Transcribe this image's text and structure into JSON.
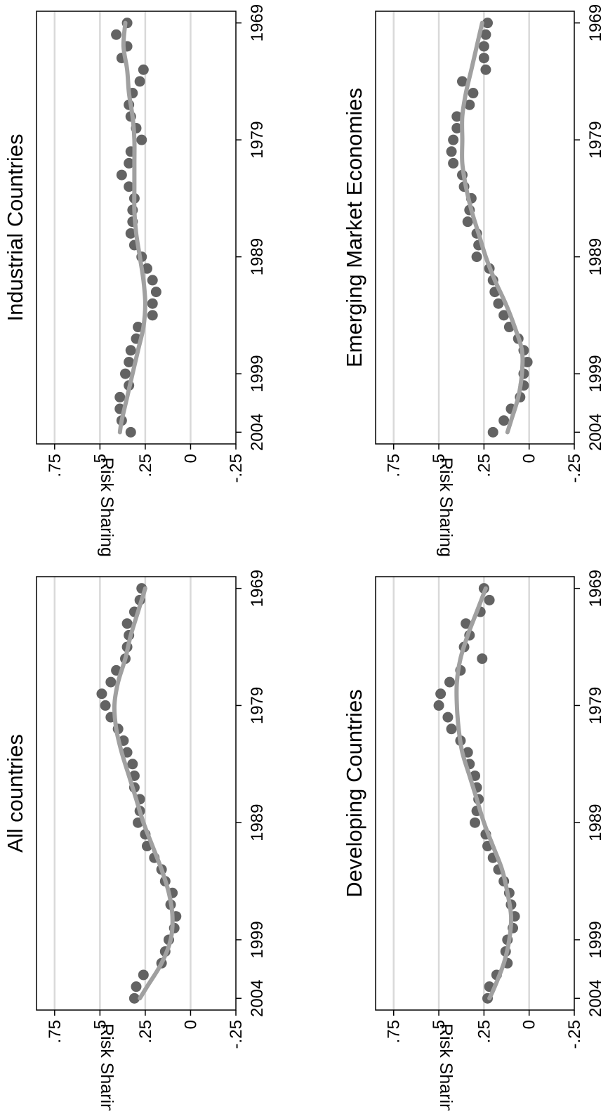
{
  "chart_data": [
    {
      "type": "scatter",
      "title": "All countries",
      "ylabel": "Risk Sharing",
      "xlabel": "",
      "xlim": [
        1968,
        2005
      ],
      "ylim": [
        -0.25,
        0.85
      ],
      "yticks": [
        {
          "v": 0.75,
          "label": ".75"
        },
        {
          "v": 0.5,
          "label": ".5"
        },
        {
          "v": 0.25,
          "label": ".25"
        },
        {
          "v": 0,
          "label": "0"
        },
        {
          "v": -0.25,
          "label": "-.25"
        }
      ],
      "xticks": [
        {
          "v": 1969,
          "label": "1969"
        },
        {
          "v": 1979,
          "label": "1979"
        },
        {
          "v": 1989,
          "label": "1989"
        },
        {
          "v": 1999,
          "label": "1999"
        },
        {
          "v": 2004,
          "label": "2004"
        }
      ],
      "gridlines": true,
      "series": [
        {
          "x": [
            1969,
            1970,
            1971,
            1972,
            1973,
            1974,
            1975,
            1976,
            1977,
            1978,
            1979,
            1980,
            1981,
            1982,
            1983,
            1984,
            1985,
            1986,
            1987,
            1988,
            1989,
            1990,
            1991,
            1992,
            1993,
            1994,
            1995,
            1996,
            1997,
            1998,
            1999,
            2000,
            2001,
            2002,
            2003,
            2004
          ],
          "y": [
            0.27,
            0.28,
            0.31,
            0.35,
            0.34,
            0.35,
            0.36,
            0.41,
            0.44,
            0.49,
            0.47,
            0.44,
            0.4,
            0.37,
            0.35,
            0.32,
            0.31,
            0.31,
            0.28,
            0.28,
            0.29,
            0.25,
            0.24,
            0.2,
            0.16,
            0.14,
            0.1,
            0.11,
            0.08,
            0.09,
            0.12,
            0.14,
            0.16,
            0.26,
            0.3,
            0.31
          ]
        },
        {
          "x": [
            1969,
            1971,
            1973,
            1975,
            1977,
            1979,
            1981,
            1983,
            1985,
            1987,
            1989,
            1991,
            1993,
            1995,
            1997,
            1999,
            2001,
            2003,
            2004
          ],
          "y": [
            0.25,
            0.29,
            0.33,
            0.36,
            0.4,
            0.42,
            0.41,
            0.38,
            0.34,
            0.3,
            0.26,
            0.21,
            0.16,
            0.12,
            0.1,
            0.11,
            0.16,
            0.24,
            0.28
          ]
        }
      ]
    },
    {
      "type": "scatter",
      "title": "Industrial Countries",
      "ylabel": "Risk Sharing",
      "xlabel": "",
      "xlim": [
        1968,
        2005
      ],
      "ylim": [
        -0.25,
        0.85
      ],
      "yticks": [
        {
          "v": 0.75,
          "label": ".75"
        },
        {
          "v": 0.5,
          "label": ".5"
        },
        {
          "v": 0.25,
          "label": ".25"
        },
        {
          "v": 0,
          "label": "0"
        },
        {
          "v": -0.25,
          "label": "-.25"
        }
      ],
      "xticks": [
        {
          "v": 1969,
          "label": "1969"
        },
        {
          "v": 1979,
          "label": "1979"
        },
        {
          "v": 1989,
          "label": "1989"
        },
        {
          "v": 1999,
          "label": "1999"
        },
        {
          "v": 2004,
          "label": "2004"
        }
      ],
      "gridlines": true,
      "series": [
        {
          "x": [
            1969,
            1970,
            1971,
            1972,
            1973,
            1974,
            1975,
            1976,
            1977,
            1978,
            1979,
            1980,
            1981,
            1982,
            1983,
            1984,
            1985,
            1986,
            1987,
            1988,
            1989,
            1990,
            1991,
            1992,
            1993,
            1994,
            1995,
            1996,
            1997,
            1998,
            1999,
            2000,
            2001,
            2002,
            2003,
            2004
          ],
          "y": [
            0.35,
            0.41,
            0.35,
            0.38,
            0.26,
            0.28,
            0.32,
            0.34,
            0.33,
            0.3,
            0.27,
            0.33,
            0.34,
            0.38,
            0.34,
            0.31,
            0.32,
            0.32,
            0.33,
            0.31,
            0.27,
            0.24,
            0.21,
            0.19,
            0.21,
            0.21,
            0.29,
            0.3,
            0.33,
            0.34,
            0.36,
            0.34,
            0.39,
            0.39,
            0.38,
            0.33
          ]
        },
        {
          "x": [
            1969,
            1971,
            1973,
            1975,
            1977,
            1979,
            1981,
            1983,
            1985,
            1987,
            1989,
            1991,
            1993,
            1995,
            1997,
            1999,
            2001,
            2003,
            2004
          ],
          "y": [
            0.36,
            0.37,
            0.35,
            0.34,
            0.32,
            0.31,
            0.31,
            0.31,
            0.31,
            0.3,
            0.28,
            0.26,
            0.25,
            0.26,
            0.29,
            0.32,
            0.35,
            0.38,
            0.39
          ]
        }
      ]
    },
    {
      "type": "scatter",
      "title": "Developing Countries",
      "ylabel": "Risk Sharing",
      "xlabel": "",
      "xlim": [
        1968,
        2005
      ],
      "ylim": [
        -0.25,
        0.85
      ],
      "yticks": [
        {
          "v": 0.75,
          "label": ".75"
        },
        {
          "v": 0.5,
          "label": ".5"
        },
        {
          "v": 0.25,
          "label": ".25"
        },
        {
          "v": 0,
          "label": "0"
        },
        {
          "v": -0.25,
          "label": "-.25"
        }
      ],
      "xticks": [
        {
          "v": 1969,
          "label": "1969"
        },
        {
          "v": 1979,
          "label": "1979"
        },
        {
          "v": 1989,
          "label": "1989"
        },
        {
          "v": 1999,
          "label": "1999"
        },
        {
          "v": 2004,
          "label": "2004"
        }
      ],
      "gridlines": true,
      "series": [
        {
          "x": [
            1969,
            1970,
            1971,
            1972,
            1973,
            1974,
            1975,
            1976,
            1977,
            1978,
            1979,
            1980,
            1981,
            1982,
            1983,
            1984,
            1985,
            1986,
            1987,
            1988,
            1989,
            1990,
            1991,
            1992,
            1993,
            1994,
            1995,
            1996,
            1997,
            1998,
            1999,
            2000,
            2001,
            2002,
            2003,
            2004
          ],
          "y": [
            0.25,
            0.22,
            0.27,
            0.35,
            0.33,
            0.36,
            0.26,
            0.38,
            0.44,
            0.49,
            0.5,
            0.45,
            0.43,
            0.38,
            0.34,
            0.33,
            0.3,
            0.29,
            0.28,
            0.29,
            0.3,
            0.24,
            0.23,
            0.2,
            0.17,
            0.14,
            0.11,
            0.1,
            0.08,
            0.09,
            0.12,
            0.13,
            0.12,
            0.18,
            0.22,
            0.23
          ]
        },
        {
          "x": [
            1969,
            1971,
            1973,
            1975,
            1977,
            1979,
            1981,
            1983,
            1985,
            1987,
            1989,
            1991,
            1993,
            1995,
            1997,
            1999,
            2001,
            2003,
            2004
          ],
          "y": [
            0.24,
            0.29,
            0.34,
            0.38,
            0.4,
            0.4,
            0.39,
            0.37,
            0.33,
            0.29,
            0.25,
            0.2,
            0.15,
            0.12,
            0.1,
            0.11,
            0.14,
            0.19,
            0.22
          ]
        }
      ]
    },
    {
      "type": "scatter",
      "title": "Emerging Market Economies",
      "ylabel": "Risk Sharing",
      "xlabel": "",
      "xlim": [
        1968,
        2005
      ],
      "ylim": [
        -0.25,
        0.85
      ],
      "yticks": [
        {
          "v": 0.75,
          "label": ".75"
        },
        {
          "v": 0.5,
          "label": ".5"
        },
        {
          "v": 0.25,
          "label": ".25"
        },
        {
          "v": 0,
          "label": "0"
        },
        {
          "v": -0.25,
          "label": "-.25"
        }
      ],
      "xticks": [
        {
          "v": 1969,
          "label": "1969"
        },
        {
          "v": 1979,
          "label": "1979"
        },
        {
          "v": 1989,
          "label": "1989"
        },
        {
          "v": 1999,
          "label": "1999"
        },
        {
          "v": 2004,
          "label": "2004"
        }
      ],
      "gridlines": true,
      "series": [
        {
          "x": [
            1969,
            1970,
            1971,
            1972,
            1973,
            1974,
            1975,
            1976,
            1977,
            1978,
            1979,
            1980,
            1981,
            1982,
            1983,
            1984,
            1985,
            1986,
            1987,
            1988,
            1989,
            1990,
            1991,
            1992,
            1993,
            1994,
            1995,
            1996,
            1997,
            1998,
            1999,
            2000,
            2001,
            2002,
            2003,
            2004
          ],
          "y": [
            0.23,
            0.24,
            0.25,
            0.25,
            0.24,
            0.37,
            0.31,
            0.33,
            0.4,
            0.4,
            0.42,
            0.43,
            0.42,
            0.37,
            0.36,
            0.32,
            0.33,
            0.34,
            0.29,
            0.28,
            0.29,
            0.22,
            0.2,
            0.19,
            0.17,
            0.14,
            0.11,
            0.06,
            0.03,
            0.01,
            0.03,
            0.03,
            0.05,
            0.1,
            0.14,
            0.2
          ]
        },
        {
          "x": [
            1969,
            1971,
            1973,
            1975,
            1977,
            1979,
            1981,
            1983,
            1985,
            1987,
            1989,
            1991,
            1993,
            1995,
            1997,
            1999,
            2001,
            2003,
            2004
          ],
          "y": [
            0.26,
            0.29,
            0.32,
            0.35,
            0.37,
            0.37,
            0.37,
            0.35,
            0.32,
            0.28,
            0.24,
            0.19,
            0.13,
            0.08,
            0.04,
            0.04,
            0.06,
            0.1,
            0.12
          ]
        }
      ]
    }
  ],
  "colors": {
    "marker": "#636363",
    "fit_line": "#a0a0a0",
    "gridline": "#d9d9d9",
    "axis": "#000000"
  }
}
